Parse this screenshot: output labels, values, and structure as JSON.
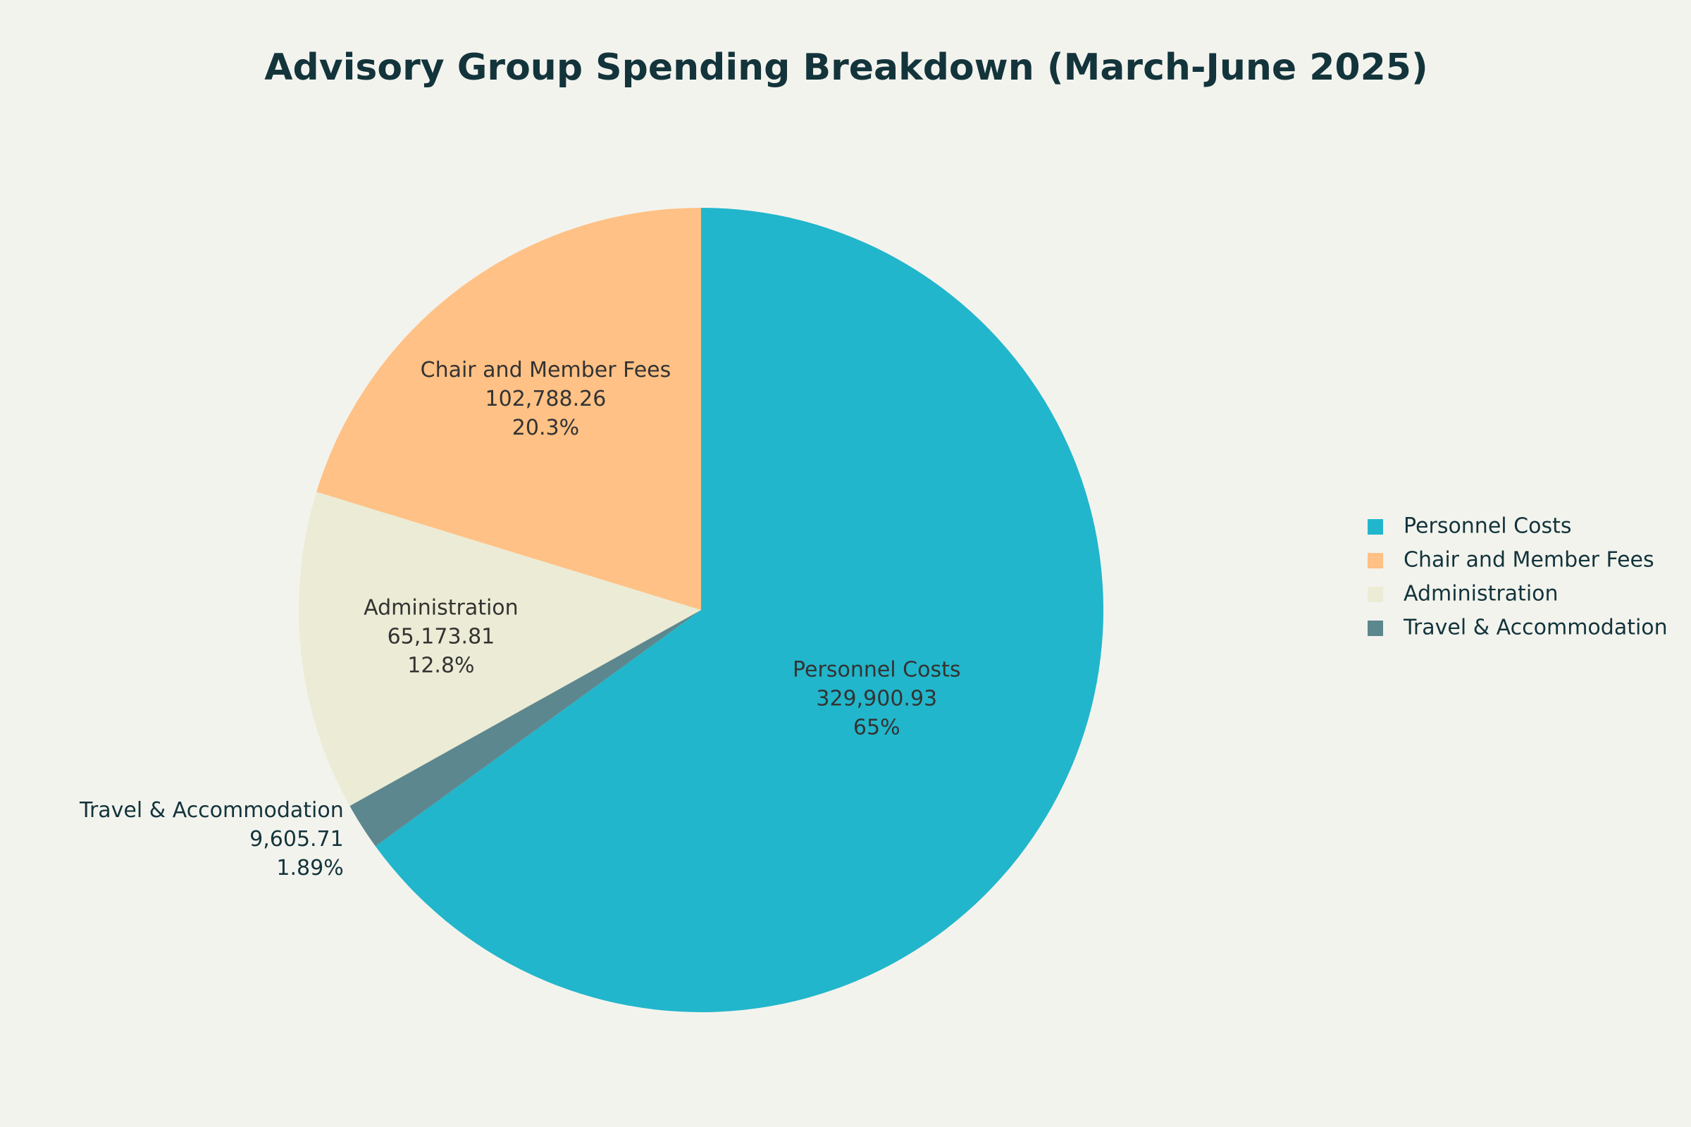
{
  "chart_data": {
    "type": "pie",
    "title": "Advisory Group Spending Breakdown (March-June 2025)",
    "categories": [
      "Personnel Costs",
      "Chair and Member Fees",
      "Administration",
      "Travel & Accommodation"
    ],
    "values": [
      329900.93,
      102788.26,
      65173.81,
      9605.71
    ],
    "value_labels": [
      "329,900.93",
      "102,788.26",
      "65,173.81",
      "9,605.71"
    ],
    "percent_labels": [
      "65%",
      "20.3%",
      "12.8%",
      "1.89%"
    ],
    "colors": [
      "#21b6cb",
      "#ffc185",
      "#ecebd5",
      "#5d878f"
    ],
    "legend": "right"
  }
}
